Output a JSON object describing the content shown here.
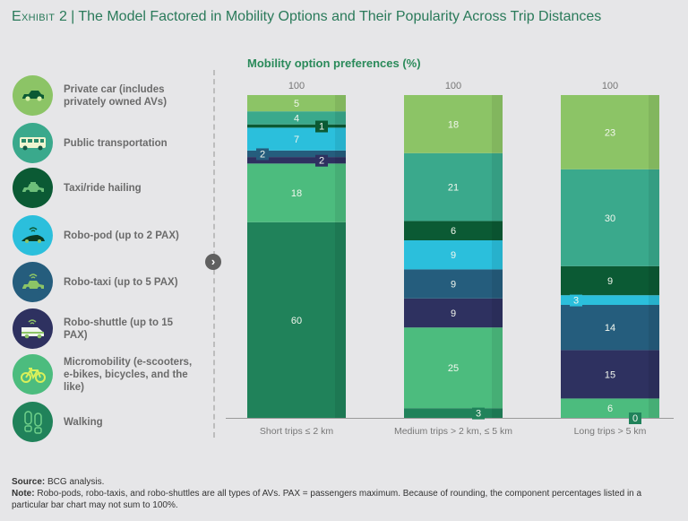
{
  "header": {
    "exhibit": "Exhibit 2",
    "separator": "|",
    "title": "The Model Factored in Mobility Options and Their Popularity Across Trip Distances"
  },
  "legend": [
    {
      "key": "private_car",
      "label": "Private car (includes privately owned AVs)",
      "icon": "car-icon",
      "color": "#8cc466"
    },
    {
      "key": "public_transport",
      "label": "Public transportation",
      "icon": "bus-icon",
      "color": "#3aa98c"
    },
    {
      "key": "taxi",
      "label": "Taxi/ride hailing",
      "icon": "taxi-icon",
      "color": "#0b5a34"
    },
    {
      "key": "robo_pod",
      "label": "Robo-pod (up to 2 PAX)",
      "icon": "robo-pod-icon",
      "color": "#2bbfdc"
    },
    {
      "key": "robo_taxi",
      "label": "Robo-taxi (up to 5 PAX)",
      "icon": "robo-taxi-icon",
      "color": "#255d7d"
    },
    {
      "key": "robo_shuttle",
      "label": "Robo-shuttle (up to 15 PAX)",
      "icon": "robo-shuttle-icon",
      "color": "#2e3160"
    },
    {
      "key": "micromobility",
      "label": "Micromobility (e-scooters, e-bikes, bicycles, and the like)",
      "icon": "bicycle-icon",
      "color": "#4cbc7e"
    },
    {
      "key": "walking",
      "label": "Walking",
      "icon": "footprints-icon",
      "color": "#20825a"
    }
  ],
  "nav": {
    "arrow_icon": "chevron-right-icon",
    "arrow_glyph": "›"
  },
  "chart_data": {
    "type": "bar",
    "stacked": true,
    "title": "Mobility option preferences (%)",
    "xlabel": "",
    "ylabel": "",
    "ylim": [
      0,
      100
    ],
    "grid": false,
    "categories": [
      "Short trips ≤ 2 km",
      "Medium trips > 2 km, ≤ 5 km",
      "Long trips > 5 km"
    ],
    "totals": [
      100,
      100,
      100
    ],
    "series": [
      {
        "name": "Walking",
        "color": "#20825a",
        "values": [
          60,
          3,
          0
        ]
      },
      {
        "name": "Micromobility",
        "color": "#4cbc7e",
        "values": [
          18,
          25,
          6
        ]
      },
      {
        "name": "Robo-shuttle",
        "color": "#2e3160",
        "values": [
          2,
          9,
          15
        ]
      },
      {
        "name": "Robo-taxi",
        "color": "#255d7d",
        "values": [
          2,
          9,
          14
        ]
      },
      {
        "name": "Robo-pod",
        "color": "#2bbfdc",
        "values": [
          7,
          9,
          3
        ]
      },
      {
        "name": "Taxi/ride hailing",
        "color": "#0b5a34",
        "values": [
          1,
          6,
          9
        ]
      },
      {
        "name": "Public transportation",
        "color": "#3aa98c",
        "values": [
          4,
          21,
          30
        ]
      },
      {
        "name": "Private car",
        "color": "#8cc466",
        "values": [
          5,
          18,
          23
        ]
      }
    ],
    "small_labels": "boxed"
  },
  "footer": {
    "source_label": "Source:",
    "source_text": "BCG analysis.",
    "note_label": "Note:",
    "note_text": "Robo-pods, robo-taxis, and robo-shuttles are all types of AVs. PAX = passengers maximum. Because of rounding, the component percentages listed in a particular bar chart may not sum to 100%."
  }
}
